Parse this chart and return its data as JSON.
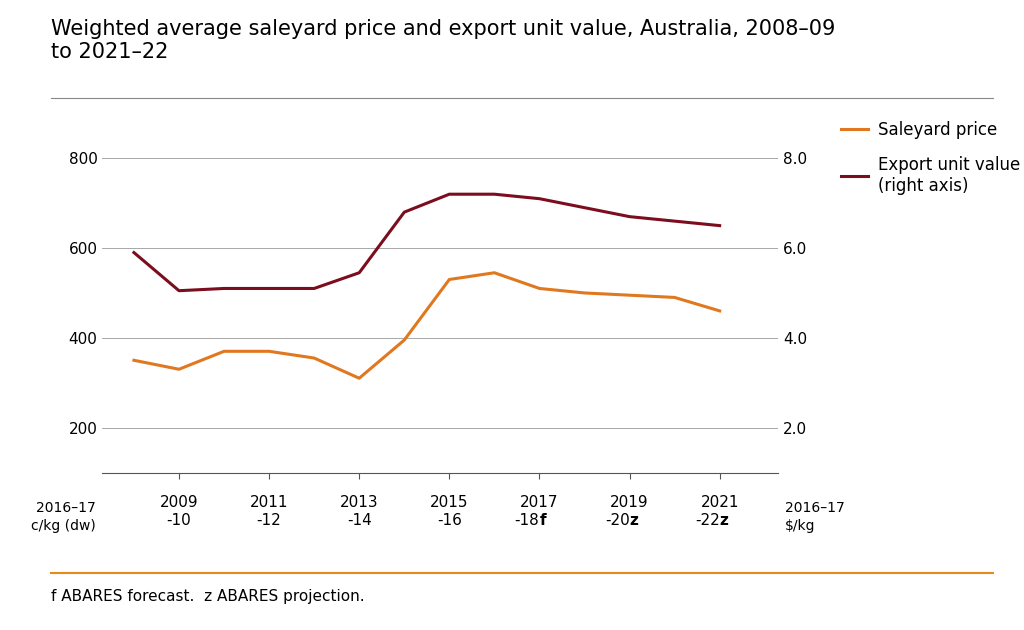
{
  "title": "Weighted average saleyard price and export unit value, Australia, 2008–09\nto 2021–22",
  "footnote": "f ABARES forecast.  z ABARES projection.",
  "ylabel_left_line1": "2016–17",
  "ylabel_left_line2": "c/kg (dw)",
  "ylabel_right_line1": "2016–17",
  "ylabel_right_line2": "$/kg",
  "saleyard_color": "#E07820",
  "export_color": "#7B0D1E",
  "background_color": "#FFFFFF",
  "x_values": [
    2008,
    2009,
    2010,
    2011,
    2012,
    2013,
    2014,
    2015,
    2016,
    2017,
    2018,
    2019,
    2020,
    2021
  ],
  "saleyard_values": [
    350,
    330,
    370,
    370,
    355,
    310,
    395,
    530,
    545,
    510,
    500,
    495,
    490,
    460
  ],
  "export_values": [
    590,
    505,
    510,
    510,
    510,
    545,
    680,
    720,
    720,
    710,
    690,
    670,
    660,
    650
  ],
  "ylim": [
    100,
    900
  ],
  "yticks_left": [
    200,
    400,
    600,
    800
  ],
  "ytick_labels_left": [
    "200",
    "400",
    "600",
    "800"
  ],
  "ytick_labels_right": [
    "2.0",
    "4.0",
    "6.0",
    "8.0"
  ],
  "yticks_right_vals": [
    200,
    400,
    600,
    800
  ],
  "xtick_labels_top": [
    "2009",
    "2011",
    "2013",
    "2015",
    "2017",
    "2019",
    "2021"
  ],
  "xtick_labels_bot": [
    "-10",
    "-12",
    "-14",
    "-16",
    "-18",
    "-20",
    "-22"
  ],
  "xtick_bot_suffix": [
    "",
    "",
    "",
    "",
    "f",
    "z",
    "z"
  ],
  "xtick_positions": [
    2009,
    2011,
    2013,
    2015,
    2017,
    2019,
    2021
  ],
  "xlim": [
    2007.3,
    2022.3
  ],
  "title_fontsize": 15,
  "tick_fontsize": 11,
  "legend_fontsize": 12,
  "footnote_fontsize": 11,
  "line_width": 2.2,
  "orange_line_label": "Saleyard price",
  "dark_red_line_label": "Export unit value\n(right axis)",
  "grid_color": "#999999",
  "spine_color": "#555555",
  "orange_line_color": "#E8891A",
  "title_color": "#333333"
}
